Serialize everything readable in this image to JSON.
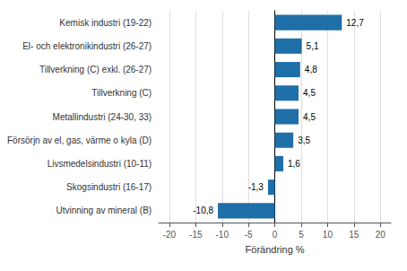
{
  "chart_data": {
    "type": "bar",
    "orientation": "horizontal",
    "categories": [
      "Utvinning av mineral (B)",
      "Skogsindustri (16-17)",
      "Livsmedelsindustri (10-11)",
      "Försörjn av el, gas, värme o kyla (D)",
      "Metallindustri (24-30, 33)",
      "Tillverkning (C)",
      "Tillverkning (C) exkl. (26-27)",
      "El- och elektronikindustri (26-27)",
      "Kemisk industri (19-22)"
    ],
    "values": [
      -10.8,
      -1.3,
      1.6,
      3.5,
      4.5,
      4.5,
      4.8,
      5.1,
      12.7
    ],
    "value_labels": [
      "-10,8",
      "-1,3",
      "1,6",
      "3,5",
      "4,5",
      "4,5",
      "4,8",
      "5,1",
      "12,7"
    ],
    "data_labels": true,
    "color": "#1F6FA8",
    "xlabel": "Förändring %",
    "xlim": [
      -22,
      22
    ],
    "xticks": [
      -20,
      -15,
      -10,
      -5,
      0,
      5,
      10,
      15,
      20
    ],
    "grid": true
  }
}
